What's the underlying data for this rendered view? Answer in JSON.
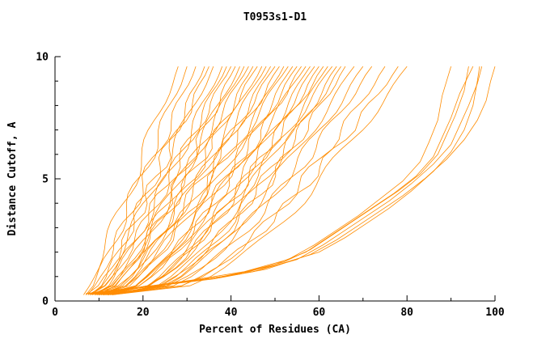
{
  "chart_data": {
    "type": "line",
    "title": "T0953s1-D1",
    "xlabel": "Percent of Residues (CA)",
    "ylabel": "Distance Cutoff, A",
    "xlim": [
      0,
      100
    ],
    "ylim": [
      0,
      10
    ],
    "line_color": "#ff8c00",
    "axis_color": "#000000",
    "grid": false,
    "legend": "none",
    "ticks": {
      "x": {
        "major": [
          0,
          20,
          40,
          60,
          80,
          100
        ],
        "minor": [
          10,
          30,
          50,
          70,
          90
        ]
      },
      "y": {
        "major": [
          0,
          5,
          10
        ],
        "minor": [
          1,
          2,
          3,
          4,
          6,
          7,
          8,
          9
        ]
      }
    },
    "generator": {
      "n_points": 26,
      "y_start": 0.25,
      "y_end": 9.6,
      "knee_power": 0.3,
      "wiggle_amp": 1.4
    },
    "bundle_curves": [
      [
        6.5,
        28,
        0.95
      ],
      [
        7,
        30,
        0.9
      ],
      [
        7.5,
        32,
        0.92
      ],
      [
        8,
        34,
        0.85
      ],
      [
        7,
        35,
        0.8
      ],
      [
        8.5,
        36,
        0.88
      ],
      [
        9,
        38,
        0.8
      ],
      [
        7.5,
        39,
        0.75
      ],
      [
        8,
        40,
        0.82
      ],
      [
        9.5,
        41,
        0.7
      ],
      [
        10,
        42,
        0.78
      ],
      [
        8,
        43,
        0.72
      ],
      [
        9,
        44,
        0.8
      ],
      [
        10,
        45,
        0.68
      ],
      [
        8.5,
        46,
        0.75
      ],
      [
        9,
        47,
        0.65
      ],
      [
        10.5,
        48,
        0.7
      ],
      [
        9.5,
        49,
        0.6
      ],
      [
        8,
        50,
        0.68
      ],
      [
        10,
        51,
        0.62
      ],
      [
        11,
        52,
        0.58
      ],
      [
        9,
        53,
        0.65
      ],
      [
        10,
        54,
        0.55
      ],
      [
        11.5,
        55,
        0.6
      ],
      [
        9.5,
        56,
        0.52
      ],
      [
        10,
        57,
        0.58
      ],
      [
        11,
        58,
        0.5
      ],
      [
        12,
        59,
        0.55
      ],
      [
        10.5,
        60,
        0.48
      ],
      [
        11,
        61,
        0.52
      ],
      [
        12,
        62,
        0.45
      ],
      [
        10,
        63,
        0.5
      ],
      [
        11.5,
        64,
        0.42
      ],
      [
        12,
        65,
        0.46
      ],
      [
        11,
        66,
        0.4
      ],
      [
        12.5,
        68,
        0.44
      ],
      [
        11,
        70,
        0.38
      ],
      [
        12,
        72,
        0.4
      ],
      [
        13,
        75,
        0.36
      ],
      [
        12,
        78,
        0.38
      ],
      [
        13,
        80,
        0.35
      ]
    ],
    "outlier_curves": [
      [
        [
          8,
          0.3
        ],
        [
          18,
          0.5
        ],
        [
          30,
          0.8
        ],
        [
          42,
          1.1
        ],
        [
          52,
          1.6
        ],
        [
          58,
          2.1
        ],
        [
          63,
          2.7
        ],
        [
          68,
          3.3
        ],
        [
          73,
          3.9
        ],
        [
          78,
          4.5
        ],
        [
          83,
          5.2
        ],
        [
          87,
          6.0
        ],
        [
          89,
          6.8
        ],
        [
          91,
          7.6
        ],
        [
          93,
          8.6
        ],
        [
          94,
          9.6
        ]
      ],
      [
        [
          9,
          0.3
        ],
        [
          20,
          0.55
        ],
        [
          33,
          0.85
        ],
        [
          45,
          1.2
        ],
        [
          55,
          1.7
        ],
        [
          61,
          2.3
        ],
        [
          66,
          2.9
        ],
        [
          71,
          3.5
        ],
        [
          76,
          4.1
        ],
        [
          81,
          4.8
        ],
        [
          86,
          5.6
        ],
        [
          90,
          6.4
        ],
        [
          92,
          7.2
        ],
        [
          94,
          8.0
        ],
        [
          96,
          8.9
        ],
        [
          97,
          9.6
        ]
      ],
      [
        [
          9,
          0.3
        ],
        [
          22,
          0.6
        ],
        [
          36,
          0.9
        ],
        [
          48,
          1.3
        ],
        [
          58,
          1.9
        ],
        [
          64,
          2.5
        ],
        [
          69,
          3.1
        ],
        [
          74,
          3.7
        ],
        [
          79,
          4.3
        ],
        [
          84,
          5.0
        ],
        [
          89,
          5.8
        ],
        [
          93,
          6.6
        ],
        [
          96,
          7.4
        ],
        [
          98,
          8.2
        ],
        [
          99,
          9.0
        ],
        [
          100,
          9.6
        ]
      ],
      [
        [
          7,
          0.3
        ],
        [
          16,
          0.5
        ],
        [
          28,
          0.75
        ],
        [
          40,
          1.05
        ],
        [
          50,
          1.5
        ],
        [
          57,
          2.0
        ],
        [
          62,
          2.6
        ],
        [
          67,
          3.2
        ],
        [
          72,
          3.8
        ],
        [
          77,
          4.4
        ],
        [
          82,
          5.1
        ],
        [
          86,
          5.9
        ],
        [
          88,
          6.7
        ],
        [
          90,
          7.5
        ],
        [
          92,
          8.5
        ],
        [
          95,
          9.6
        ]
      ],
      [
        [
          10,
          0.35
        ],
        [
          24,
          0.65
        ],
        [
          38,
          1.0
        ],
        [
          50,
          1.45
        ],
        [
          60,
          2.0
        ],
        [
          66,
          2.6
        ],
        [
          71,
          3.2
        ],
        [
          76,
          3.8
        ],
        [
          81,
          4.5
        ],
        [
          86,
          5.3
        ],
        [
          90,
          6.1
        ],
        [
          93,
          7.0
        ],
        [
          95,
          8.0
        ],
        [
          96,
          9.0
        ],
        [
          96.5,
          9.6
        ]
      ],
      [
        [
          8,
          0.3
        ],
        [
          19,
          0.55
        ],
        [
          31,
          0.85
        ],
        [
          43,
          1.2
        ],
        [
          53,
          1.7
        ],
        [
          59,
          2.3
        ],
        [
          64,
          2.9
        ],
        [
          69,
          3.5
        ],
        [
          74,
          4.2
        ],
        [
          79,
          4.9
        ],
        [
          83,
          5.7
        ],
        [
          85,
          6.5
        ],
        [
          87,
          7.4
        ],
        [
          88,
          8.4
        ],
        [
          90,
          9.6
        ]
      ]
    ]
  }
}
